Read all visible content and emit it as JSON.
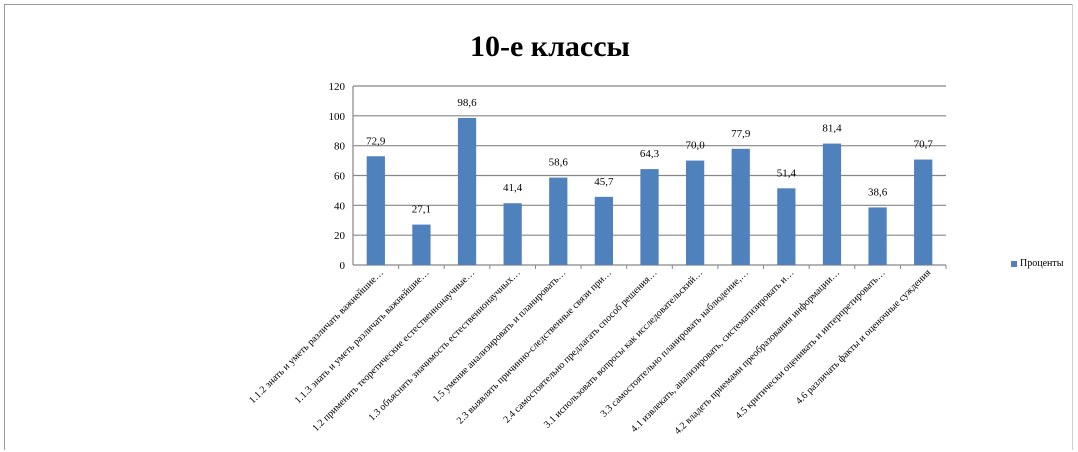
{
  "chart_data": {
    "type": "bar",
    "title": "10-е  классы",
    "categories": [
      "1.1.2 знать и уметь различать важнейшие…",
      "1.1.3 знать и уметь различать важнейшие…",
      "1.2 применять теоретические естественнонаучные…",
      "1.3 объяснять значимость естественнонаучных…",
      "1.5 умение анализировать и планировать…",
      "2.3 выявлять причинно-следственные связи при…",
      "2.4 самостоятельно предлагать способ решения…",
      "3.1 использовать вопросы как исследовательский…",
      "3.3 самостоятельно планировать наблюдение,…",
      "4.1 извлекать, анализировать, систематизировать и…",
      "4.2 владеть приемами преобразования информации…",
      "4.5 критически оценивать и интерпретировать…",
      "4.6 различать факты и оценочные суждения"
    ],
    "series": [
      {
        "name": "Проценты",
        "values": [
          72.9,
          27.1,
          98.6,
          41.4,
          58.6,
          45.7,
          64.3,
          70.0,
          77.9,
          51.4,
          81.4,
          38.6,
          70.7
        ],
        "labels": [
          "72,9",
          "27,1",
          "98,6",
          "41,4",
          "58,6",
          "45,7",
          "64,3",
          "70,0",
          "77,9",
          "51,4",
          "81,4",
          "38,6",
          "70,7"
        ]
      }
    ],
    "yticks": [
      "0",
      "20",
      "40",
      "60",
      "80",
      "100",
      "120"
    ],
    "ylim": [
      0,
      120
    ],
    "grid": true,
    "legend_position": "right",
    "colors": {
      "bar": "#4f81bd",
      "grid": "#868686"
    }
  }
}
